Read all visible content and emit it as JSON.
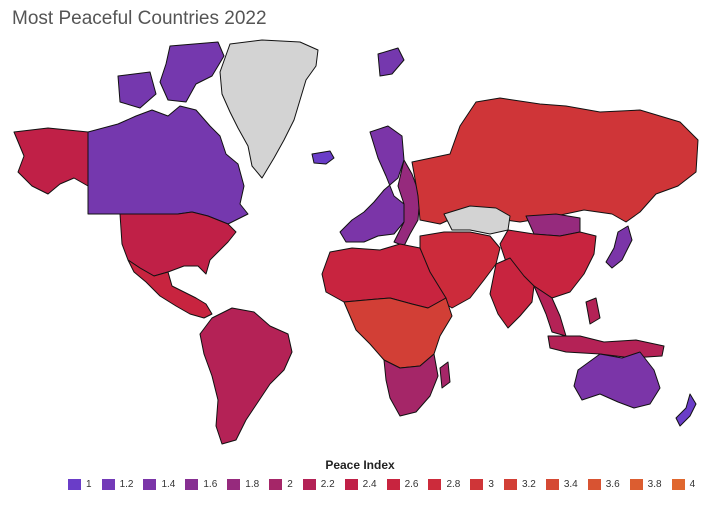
{
  "title": "Most Peaceful Countries 2022",
  "legend": {
    "title": "Peace Index",
    "items": [
      {
        "label": "1",
        "color": "#6a3dc8"
      },
      {
        "label": "1.2",
        "color": "#733ab8"
      },
      {
        "label": "1.4",
        "color": "#7b35a8"
      },
      {
        "label": "1.6",
        "color": "#872f92"
      },
      {
        "label": "1.8",
        "color": "#962a7d"
      },
      {
        "label": "2",
        "color": "#a52668"
      },
      {
        "label": "2.2",
        "color": "#b42256"
      },
      {
        "label": "2.4",
        "color": "#c02047"
      },
      {
        "label": "2.6",
        "color": "#c8243f"
      },
      {
        "label": "2.8",
        "color": "#cc2b3b"
      },
      {
        "label": "3",
        "color": "#cf3538"
      },
      {
        "label": "3.2",
        "color": "#d23f36"
      },
      {
        "label": "3.4",
        "color": "#d54934"
      },
      {
        "label": "3.6",
        "color": "#d85332"
      },
      {
        "label": "3.8",
        "color": "#dc5d30"
      },
      {
        "label": "4",
        "color": "#e0672e"
      }
    ]
  },
  "regions": [
    {
      "name": "Canada",
      "color": "#7538ae"
    },
    {
      "name": "Alaska",
      "color": "#c02047"
    },
    {
      "name": "United States",
      "color": "#c02047"
    },
    {
      "name": "Greenland",
      "color": "#d3d3d3"
    },
    {
      "name": "Mexico",
      "color": "#c8243f"
    },
    {
      "name": "South America",
      "color": "#b42256"
    },
    {
      "name": "Western Europe",
      "color": "#7b35a8"
    },
    {
      "name": "Eastern Europe",
      "color": "#962a7d"
    },
    {
      "name": "Russia",
      "color": "#cf3538"
    },
    {
      "name": "Kazakhstan",
      "color": "#d3d3d3"
    },
    {
      "name": "China",
      "color": "#c8243f"
    },
    {
      "name": "Mongolia",
      "color": "#962a7d"
    },
    {
      "name": "Middle East",
      "color": "#cc2b3b"
    },
    {
      "name": "South Asia",
      "color": "#c8243f"
    },
    {
      "name": "Southeast Asia",
      "color": "#b42256"
    },
    {
      "name": "Japan",
      "color": "#7b35a8"
    },
    {
      "name": "North Africa",
      "color": "#c8243f"
    },
    {
      "name": "Central Africa",
      "color": "#d23f36"
    },
    {
      "name": "Southern Africa",
      "color": "#a52668"
    },
    {
      "name": "Australia",
      "color": "#7b35a8"
    },
    {
      "name": "New Zealand",
      "color": "#6a3dc8"
    },
    {
      "name": "Iceland",
      "color": "#6a3dc8"
    }
  ]
}
